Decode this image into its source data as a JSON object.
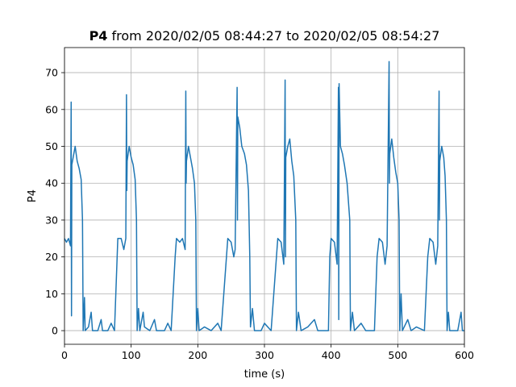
{
  "chart_data": {
    "type": "line",
    "title": [
      "P4",
      "from 2020/02/05 08:44:27 to 2020/02/05 08:54:27"
    ],
    "xlabel": "time (s)",
    "ylabel": "P4",
    "xlim": [
      0,
      600
    ],
    "xticks": [
      0,
      100,
      200,
      300,
      400,
      500,
      600
    ],
    "ylim": [
      -3.7,
      76.8
    ],
    "yticks": [
      0,
      10,
      20,
      30,
      40,
      50,
      60,
      70
    ],
    "grid": true,
    "series": [
      {
        "color": "#1f77b4",
        "x": [
          0,
          3,
          6,
          9,
          10,
          10.5,
          11,
          13,
          16,
          19,
          22,
          25,
          27,
          28,
          30,
          31,
          36,
          40,
          42,
          50,
          55,
          57,
          65,
          70,
          75,
          78,
          80,
          85,
          89,
          92,
          93,
          93.5,
          94,
          97,
          100,
          103,
          106,
          108,
          109,
          111,
          113,
          118,
          120,
          128,
          135,
          138,
          150,
          155,
          160,
          166,
          168,
          173,
          177,
          181,
          182,
          182.5,
          183,
          186,
          189,
          192,
          195,
          197,
          198,
          200,
          202,
          210,
          220,
          230,
          235,
          243,
          245,
          250,
          254,
          256,
          259,
          259.5,
          260,
          263,
          266,
          270,
          273,
          276,
          278,
          279,
          282,
          285,
          295,
          300,
          310,
          318,
          320,
          325,
          329,
          331,
          331.5,
          332,
          335,
          338,
          341,
          344,
          347,
          348,
          351,
          355,
          365,
          375,
          380,
          396,
          398,
          400,
          405,
          409,
          411,
          411.5,
          412,
          414,
          417,
          420,
          424,
          428,
          429,
          432,
          435,
          445,
          452,
          465,
          469,
          472,
          477,
          481,
          484,
          487,
          487.5,
          488,
          491,
          494,
          497,
          500,
          502,
          503,
          505,
          507,
          515,
          520,
          528,
          540,
          545,
          548,
          553,
          557,
          560,
          562,
          562.5,
          563,
          566,
          569,
          571,
          573,
          574,
          576,
          578,
          590,
          595,
          597,
          600
        ],
        "values": [
          25,
          24,
          25,
          23,
          62,
          4,
          45,
          47,
          50,
          46,
          44,
          41,
          30,
          0,
          9,
          0,
          1,
          5,
          0,
          0,
          3,
          0,
          0,
          2,
          0,
          15,
          25,
          25,
          22,
          25,
          64,
          38,
          46,
          50,
          47,
          45,
          41,
          30,
          0,
          6,
          0,
          5,
          1,
          0,
          3,
          0,
          0,
          2,
          0,
          20,
          25,
          24,
          25,
          22,
          65,
          40,
          46,
          50,
          47,
          44,
          40,
          30,
          0,
          6,
          0,
          1,
          0,
          2,
          0,
          20,
          25,
          24,
          20,
          22,
          66,
          30,
          58,
          55,
          50,
          48,
          45,
          38,
          20,
          1,
          6,
          0,
          0,
          2,
          0,
          20,
          25,
          24,
          18,
          68,
          20,
          47,
          50,
          52,
          46,
          42,
          30,
          0,
          5,
          0,
          1,
          3,
          0,
          0,
          20,
          25,
          24,
          18,
          66,
          3,
          67,
          50,
          48,
          45,
          40,
          30,
          0,
          5,
          0,
          2,
          0,
          0,
          20,
          25,
          24,
          18,
          23,
          73,
          40,
          48,
          52,
          47,
          43,
          40,
          30,
          0,
          10,
          0,
          3,
          0,
          1,
          0,
          20,
          25,
          24,
          18,
          23,
          65,
          30,
          46,
          50,
          47,
          42,
          30,
          0,
          5,
          0,
          0,
          5,
          0,
          0
        ]
      }
    ]
  }
}
